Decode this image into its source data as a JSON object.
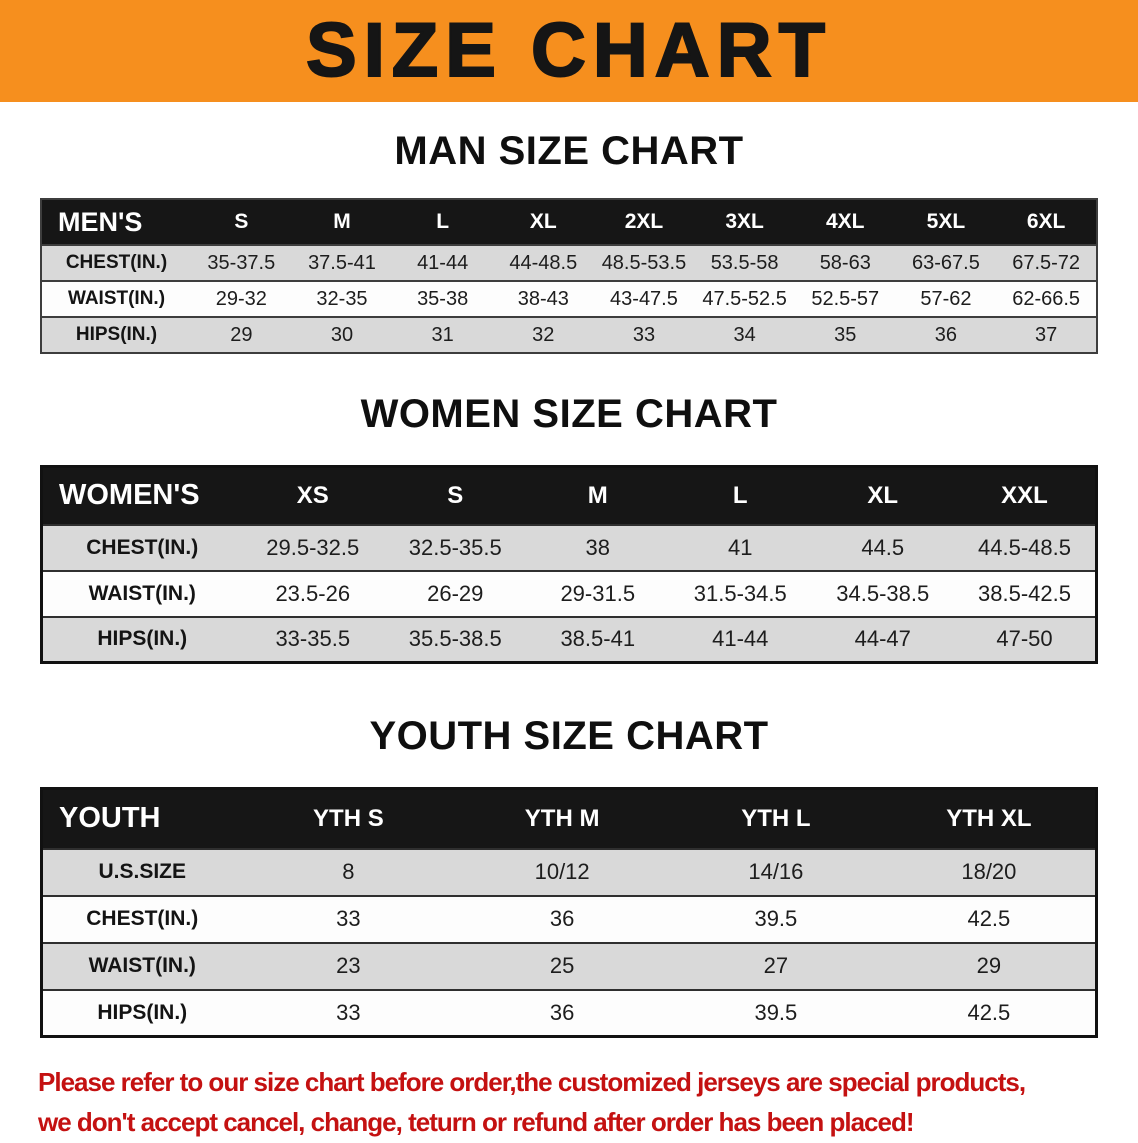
{
  "banner": {
    "title": "SIZE CHART",
    "bg_color": "#f68f1e",
    "text_color": "#151515"
  },
  "sections": [
    {
      "id": "men",
      "heading": "MAN SIZE CHART",
      "table": {
        "label": "MEN'S",
        "columns": [
          "S",
          "M",
          "L",
          "XL",
          "2XL",
          "3XL",
          "4XL",
          "5XL",
          "6XL"
        ],
        "rows": [
          {
            "label": "CHEST(IN.)",
            "values": [
              "35-37.5",
              "37.5-41",
              "41-44",
              "44-48.5",
              "48.5-53.5",
              "53.5-58",
              "58-63",
              "63-67.5",
              "67.5-72"
            ]
          },
          {
            "label": "WAIST(IN.)",
            "values": [
              "29-32",
              "32-35",
              "35-38",
              "38-43",
              "43-47.5",
              "47.5-52.5",
              "52.5-57",
              "57-62",
              "62-66.5"
            ]
          },
          {
            "label": "HIPS(IN.)",
            "values": [
              "29",
              "30",
              "31",
              "32",
              "33",
              "34",
              "35",
              "36",
              "37"
            ]
          }
        ]
      }
    },
    {
      "id": "women",
      "heading": "WOMEN SIZE CHART",
      "table": {
        "label": "WOMEN'S",
        "columns": [
          "XS",
          "S",
          "M",
          "L",
          "XL",
          "XXL"
        ],
        "rows": [
          {
            "label": "CHEST(IN.)",
            "values": [
              "29.5-32.5",
              "32.5-35.5",
              "38",
              "41",
              "44.5",
              "44.5-48.5"
            ]
          },
          {
            "label": "WAIST(IN.)",
            "values": [
              "23.5-26",
              "26-29",
              "29-31.5",
              "31.5-34.5",
              "34.5-38.5",
              "38.5-42.5"
            ]
          },
          {
            "label": "HIPS(IN.)",
            "values": [
              "33-35.5",
              "35.5-38.5",
              "38.5-41",
              "41-44",
              "44-47",
              "47-50"
            ]
          }
        ]
      }
    },
    {
      "id": "youth",
      "heading": "YOUTH SIZE CHART",
      "table": {
        "label": "YOUTH",
        "columns": [
          "YTH S",
          "YTH M",
          "YTH L",
          "YTH XL"
        ],
        "rows": [
          {
            "label": "U.S.SIZE",
            "values": [
              "8",
              "10/12",
              "14/16",
              "18/20"
            ]
          },
          {
            "label": "CHEST(IN.)",
            "values": [
              "33",
              "36",
              "39.5",
              "42.5"
            ]
          },
          {
            "label": "WAIST(IN.)",
            "values": [
              "23",
              "25",
              "27",
              "29"
            ]
          },
          {
            "label": "HIPS(IN.)",
            "values": [
              "33",
              "36",
              "39.5",
              "42.5"
            ]
          }
        ]
      }
    }
  ],
  "footer": {
    "lines": [
      "Please refer to our size chart before order,the customized jerseys are special products,",
      "we don't accept cancel, change, teturn or refund after order has been placed!"
    ],
    "text_color": "#c41111"
  },
  "style_colors": {
    "table_header_bg": "#161616",
    "row_stripe_gray": "#d9d9d9"
  }
}
